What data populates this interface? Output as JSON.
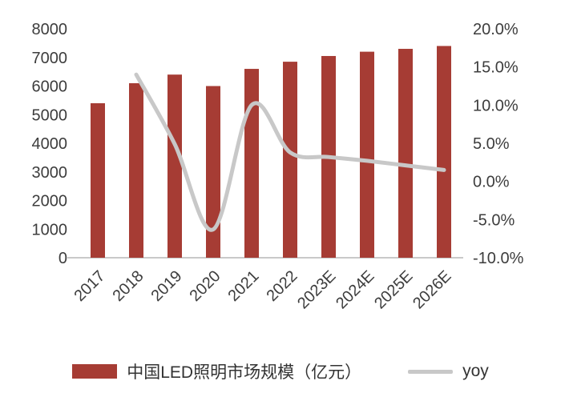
{
  "chart_data": {
    "type": "bar",
    "combo": "bar+line",
    "categories": [
      "2017",
      "2018",
      "2019",
      "2020",
      "2021",
      "2022",
      "2023E",
      "2024E",
      "2025E",
      "2026E"
    ],
    "series": [
      {
        "name": "中国LED照明市场规模（亿元）",
        "type": "bar",
        "axis": "left",
        "color": "#a63c34",
        "values": [
          5400,
          6100,
          6400,
          6000,
          6600,
          6850,
          7050,
          7200,
          7300,
          7400
        ]
      },
      {
        "name": "yoy",
        "type": "line",
        "axis": "right",
        "color": "#c8c8c8",
        "values": [
          null,
          14.0,
          4.9,
          -6.3,
          10.0,
          3.8,
          3.2,
          2.7,
          2.1,
          1.5
        ]
      }
    ],
    "title": "",
    "xlabel": "",
    "ylabel": "",
    "left_axis": {
      "min": 0,
      "max": 8000,
      "step": 1000,
      "tick_labels": [
        "0",
        "1000",
        "2000",
        "3000",
        "4000",
        "5000",
        "6000",
        "7000",
        "8000"
      ]
    },
    "right_axis": {
      "min": -10,
      "max": 20,
      "step": 5,
      "format": "percent",
      "tick_labels": [
        "-10.0%",
        "-5.0%",
        "0.0%",
        "5.0%",
        "10.0%",
        "15.0%",
        "20.0%"
      ]
    },
    "grid": false,
    "legend_position": "bottom"
  },
  "legend": {
    "bar_label": "中国LED照明市场规模（亿元）",
    "line_label": "yoy"
  },
  "style": {
    "bar_color": "#a63c34",
    "line_color": "#c8c8c8",
    "axis_line_color": "#c9c9c9",
    "text_color": "#3d3d3d",
    "background": "#ffffff"
  }
}
